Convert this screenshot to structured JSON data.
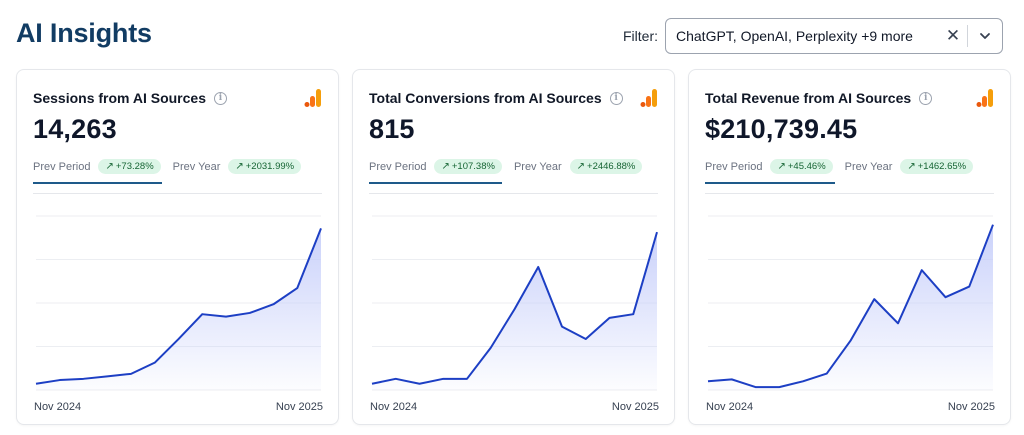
{
  "header": {
    "title": "AI Insights",
    "filter_label": "Filter:",
    "filter_value": "ChatGPT, OpenAI, Perplexity +9 more"
  },
  "cards": [
    {
      "title": "Sessions from AI Sources",
      "value": "14,263",
      "prev_period_label": "Prev Period",
      "prev_period_change": "+73.28%",
      "prev_year_label": "Prev Year",
      "prev_year_change": "+2031.99%",
      "x_start": "Nov 2024",
      "x_end": "Nov 2025"
    },
    {
      "title": "Total Conversions from AI Sources",
      "value": "815",
      "prev_period_label": "Prev Period",
      "prev_period_change": "+107.38%",
      "prev_year_label": "Prev Year",
      "prev_year_change": "+2446.88%",
      "x_start": "Nov 2024",
      "x_end": "Nov 2025"
    },
    {
      "title": "Total Revenue from AI Sources",
      "value": "$210,739.45",
      "prev_period_label": "Prev Period",
      "prev_period_change": "+45.46%",
      "prev_year_label": "Prev Year",
      "prev_year_change": "+1462.65%",
      "x_start": "Nov 2024",
      "x_end": "Nov 2025"
    }
  ],
  "colors": {
    "title": "#123c63",
    "line": "#1d3fc4",
    "area": "#c7cffa",
    "badge_bg": "#dcf5e7",
    "badge_text": "#166534",
    "analytics_bar": "#f59e0b"
  },
  "chart_data": [
    {
      "type": "area",
      "title": "Sessions from AI Sources",
      "x_start": "Nov 2024",
      "x_end": "Nov 2025",
      "points": 13,
      "values": [
        0.05,
        0.08,
        0.09,
        0.11,
        0.13,
        0.22,
        0.41,
        0.61,
        0.59,
        0.62,
        0.69,
        0.82,
        1.3
      ],
      "ylim": [
        0,
        1.4
      ]
    },
    {
      "type": "area",
      "title": "Total Conversions from AI Sources",
      "x_start": "Nov 2024",
      "x_end": "Nov 2025",
      "points": 13,
      "values": [
        0.05,
        0.09,
        0.05,
        0.09,
        0.09,
        0.34,
        0.65,
        0.99,
        0.51,
        0.41,
        0.58,
        0.61,
        1.27
      ],
      "ylim": [
        0,
        1.4
      ]
    },
    {
      "type": "area",
      "title": "Total Revenue from AI Sources",
      "x_start": "Nov 2024",
      "x_end": "Nov 2025",
      "points": 13,
      "values": [
        0.09,
        0.11,
        0.03,
        0.03,
        0.09,
        0.17,
        0.51,
        0.94,
        0.69,
        1.24,
        0.96,
        1.07,
        1.71
      ],
      "ylim": [
        0,
        1.8
      ]
    }
  ]
}
